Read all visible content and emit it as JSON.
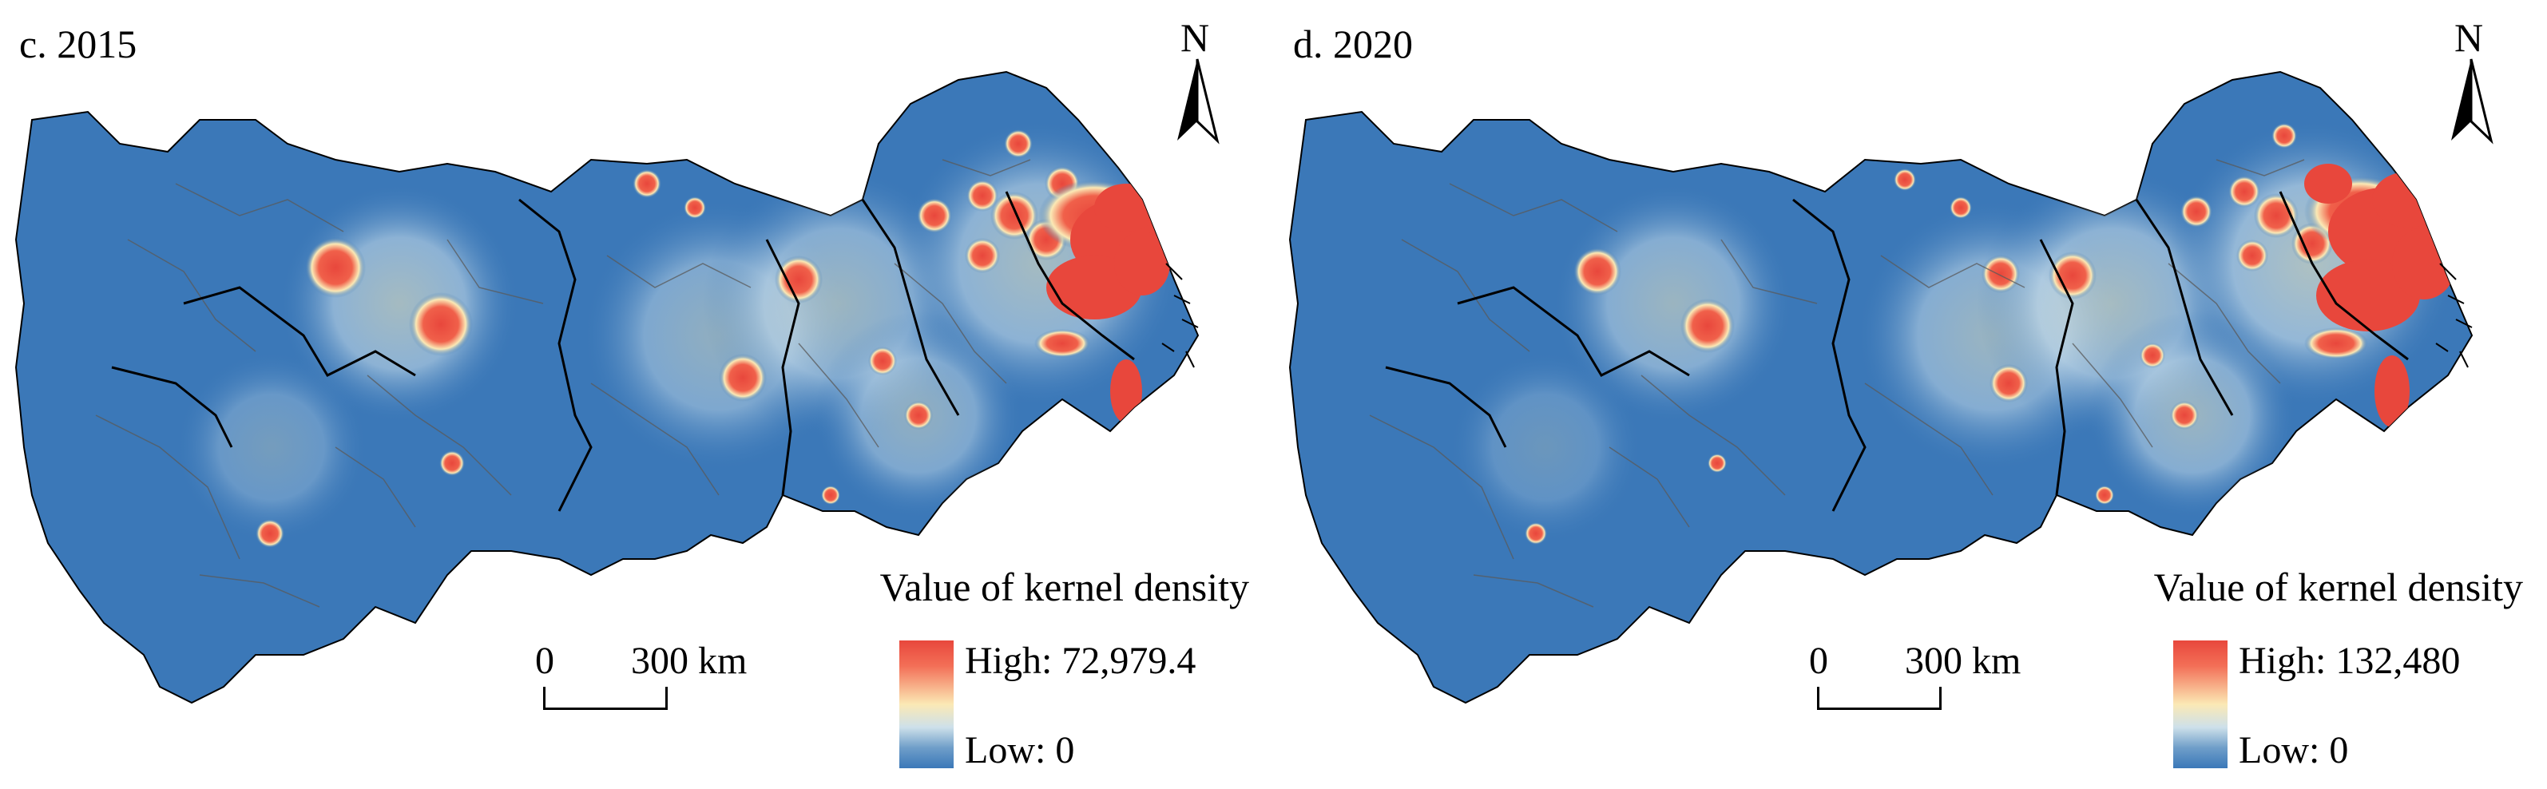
{
  "colors": {
    "background": "#3b78b8",
    "high": "#e8473c",
    "mid": "#fbe9b5",
    "low": "#3b78b8",
    "boundary": "#000000",
    "sub_boundary": "#5a5a5a"
  },
  "panels": [
    {
      "title": "c. 2015",
      "north": "N",
      "legend": {
        "title": "Value of kernel density",
        "high_label": "High: 72,979.4",
        "low_label": "Low: 0"
      },
      "scale": {
        "zero": "0",
        "distance": "300 km"
      }
    },
    {
      "title": "d. 2020",
      "north": "N",
      "legend": {
        "title": "Value of kernel density",
        "high_label": "High: 132,480",
        "low_label": "Low: 0"
      },
      "scale": {
        "zero": "0",
        "distance": "300 km"
      }
    }
  ]
}
